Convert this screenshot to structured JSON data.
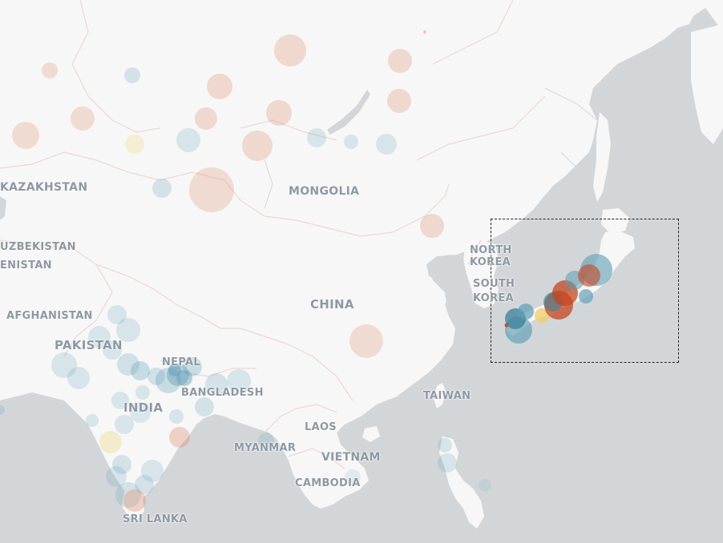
{
  "labels": {
    "kazakhstan": "KAZAKHSTAN",
    "mongolia": "MONGOLIA",
    "uzbekistan": "UZBEKISTAN",
    "turkmenistan": "ENISTAN",
    "afghanistan": "AFGHANISTAN",
    "pakistan": "PAKISTAN",
    "nepal": "NEPAL",
    "bangladesh": "BANGLADESH",
    "india": "INDIA",
    "china": "CHINA",
    "north_korea_1": "NORTH",
    "north_korea_2": "KOREA",
    "south_korea_1": "SOUTH",
    "south_korea_2": "KOREA",
    "taiwan": "TAIWAN",
    "laos": "LAOS",
    "myanmar": "MYANMAR",
    "vietnam": "VIETNAM",
    "cambodia": "CAMBODIA",
    "sri_lanka": "SRI LANKA"
  },
  "colors": {
    "land": "#f7f7f7",
    "water": "#d3d6d9",
    "border": "#efd8d8",
    "label": "#8e98a4",
    "marker_blue": "#5b9cb3",
    "marker_orange": "#d97a55",
    "marker_red": "#c4461f",
    "marker_yellow": "#f0cf6a",
    "selection_border": "#222222"
  }
}
